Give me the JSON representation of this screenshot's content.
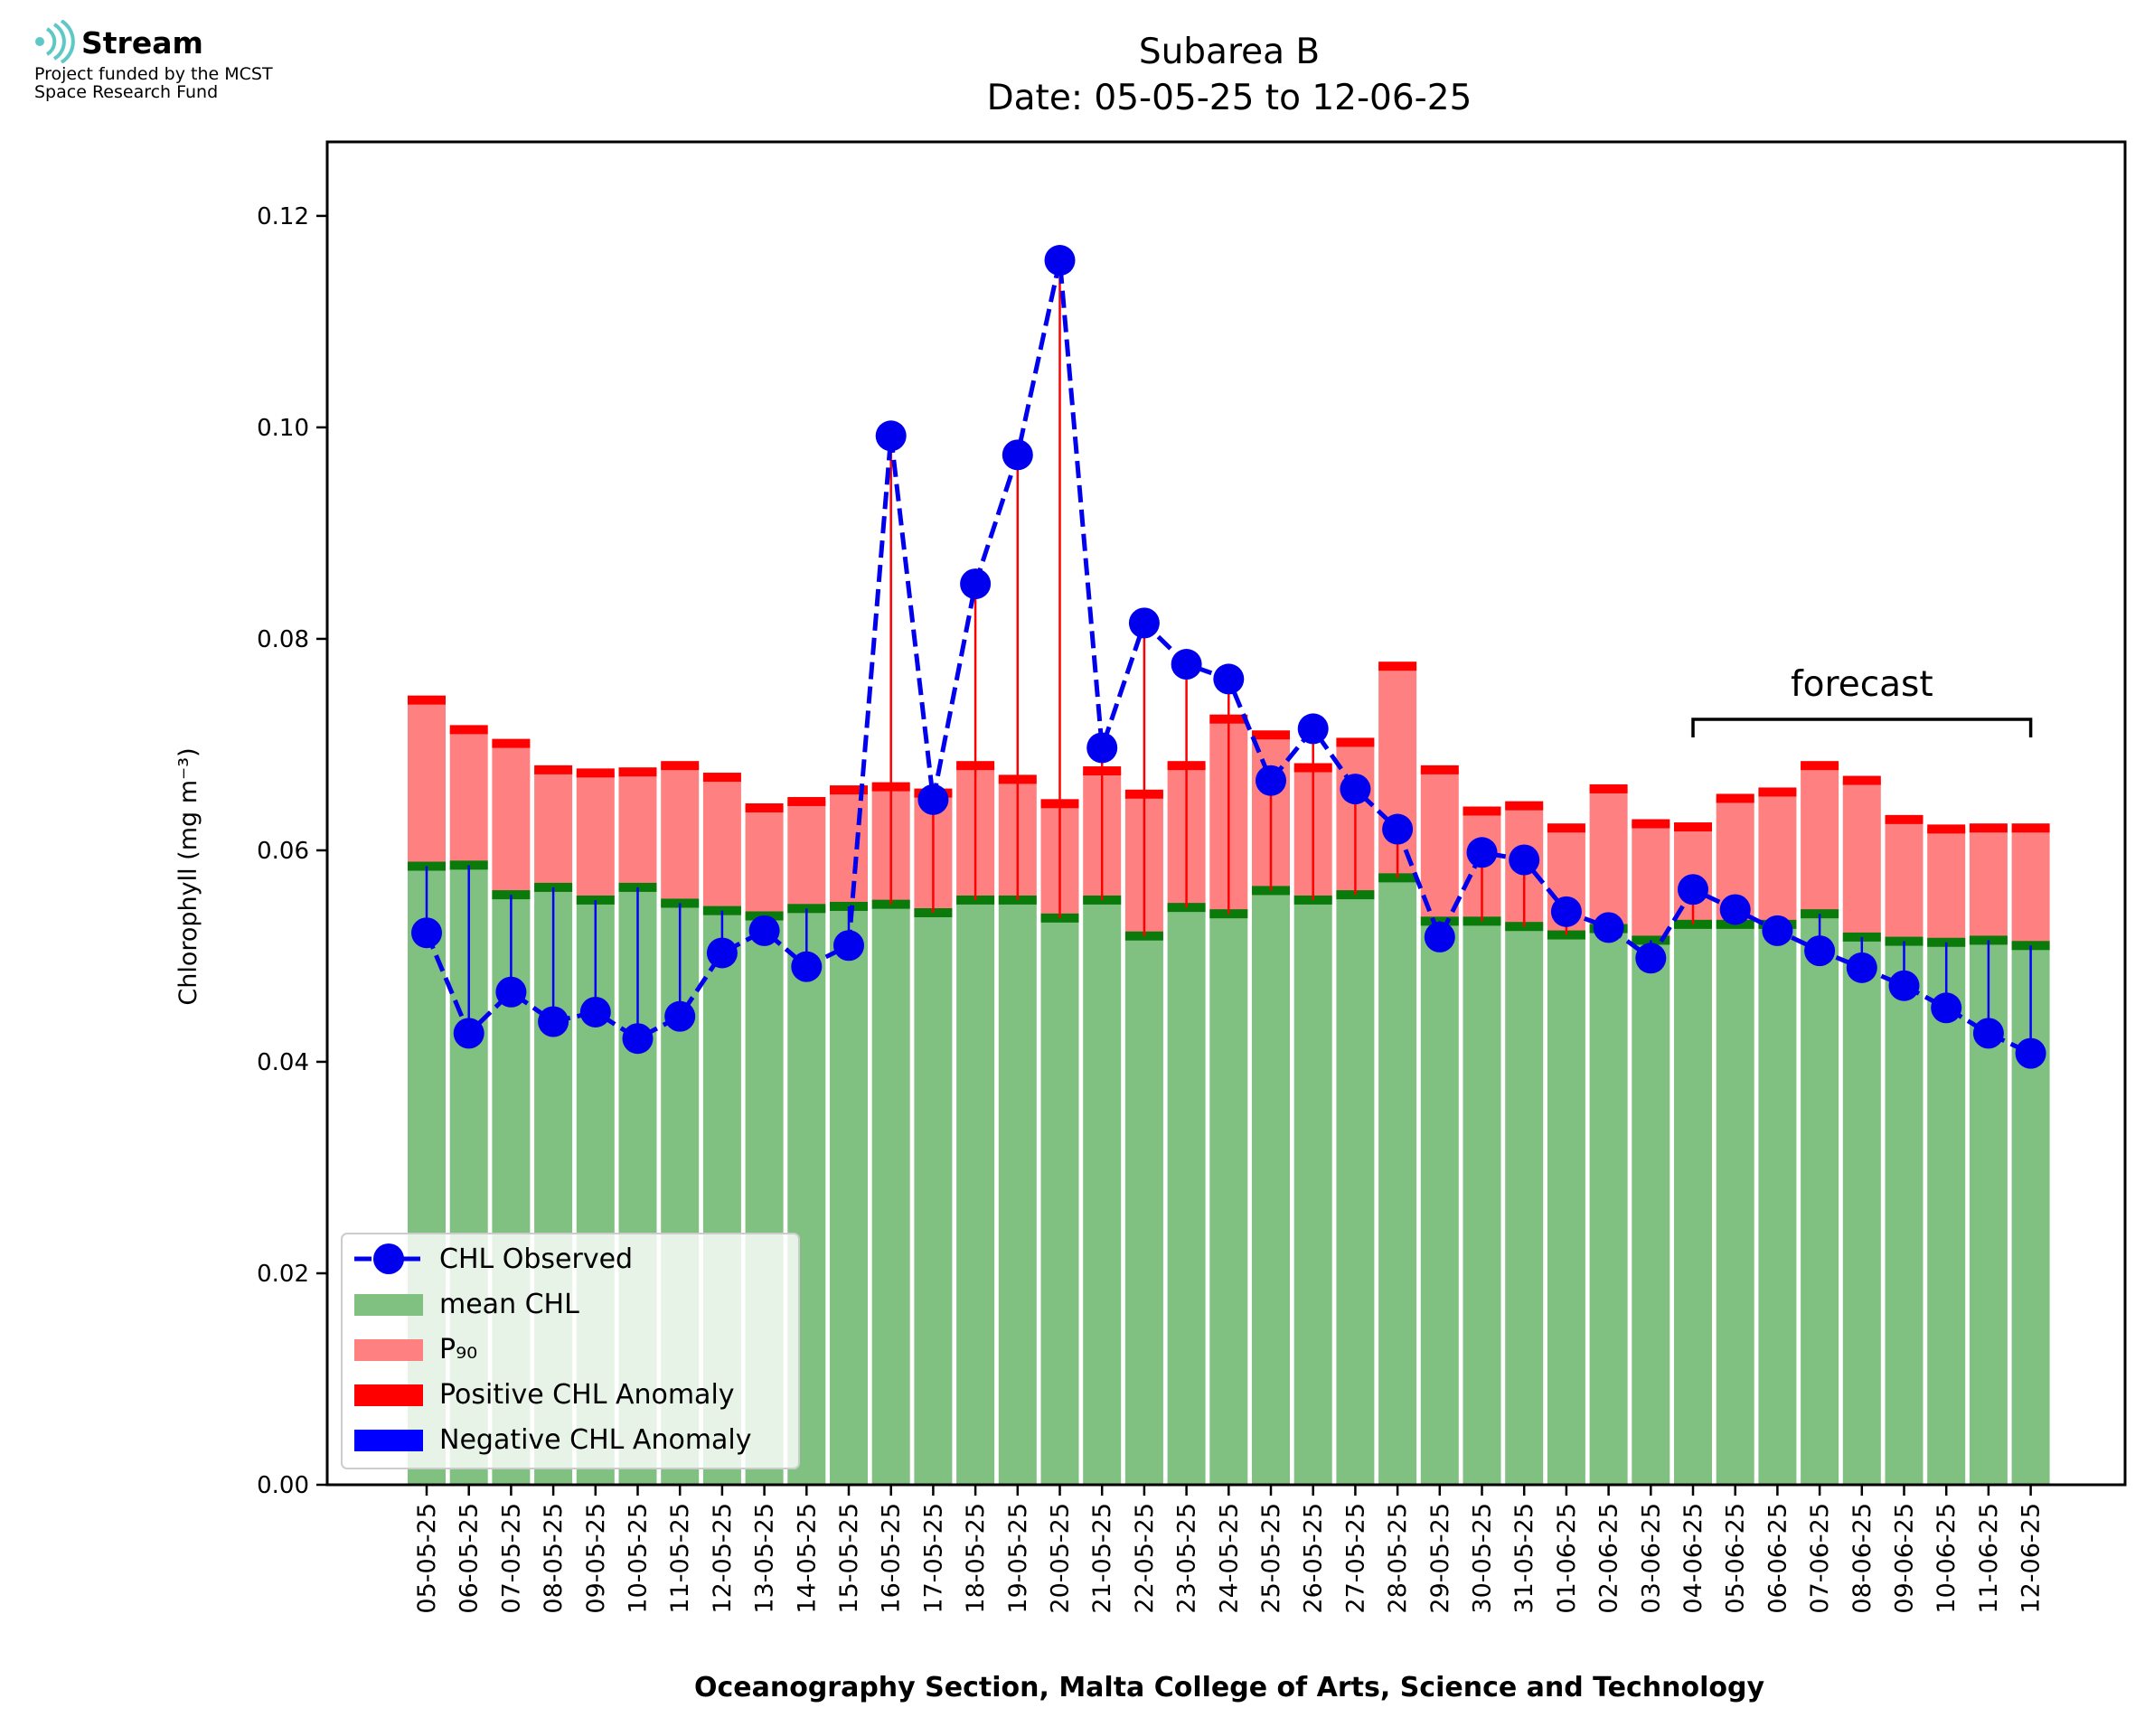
{
  "logo": {
    "name": "Stream",
    "line1": "Project funded by the MCST",
    "line2": "Space Research Fund",
    "icon": "stream-waves-icon",
    "color": "#5ec8c6"
  },
  "chart_data": {
    "type": "bar",
    "title": "Subarea B",
    "subtitle": "Date: 05-05-25 to 12-06-25",
    "xlabel": "Oceanography Section, Malta College of Arts, Science and Technology",
    "ylabel": "Chlorophyll (mg m⁻³)",
    "ylim": [
      0,
      0.127
    ],
    "yticks": [
      0.0,
      0.02,
      0.04,
      0.06,
      0.08,
      0.1,
      0.12
    ],
    "ytick_labels": [
      "0.00",
      "0.02",
      "0.04",
      "0.06",
      "0.08",
      "0.10",
      "0.12"
    ],
    "grid": false,
    "legend_position": "lower-left",
    "categories": [
      "05-05-25",
      "06-05-25",
      "07-05-25",
      "08-05-25",
      "09-05-25",
      "10-05-25",
      "11-05-25",
      "12-05-25",
      "13-05-25",
      "14-05-25",
      "15-05-25",
      "16-05-25",
      "17-05-25",
      "18-05-25",
      "19-05-25",
      "20-05-25",
      "21-05-25",
      "22-05-25",
      "23-05-25",
      "24-05-25",
      "25-05-25",
      "26-05-25",
      "27-05-25",
      "28-05-25",
      "29-05-25",
      "30-05-25",
      "31-05-25",
      "01-06-25",
      "02-06-25",
      "03-06-25",
      "04-06-25",
      "05-06-25",
      "06-06-25",
      "07-06-25",
      "08-06-25",
      "09-06-25",
      "10-06-25",
      "11-06-25",
      "12-06-25"
    ],
    "series": [
      {
        "name": "CHL Observed",
        "color": "#0000ee",
        "style": "dashed-line-with-markers",
        "values": [
          0.0522,
          0.0427,
          0.0466,
          0.0438,
          0.0447,
          0.0422,
          0.0443,
          0.0503,
          0.0524,
          0.049,
          0.051,
          0.0992,
          0.0648,
          0.0852,
          0.0974,
          0.1158,
          0.0697,
          0.0815,
          0.0776,
          0.0762,
          0.0666,
          0.0715,
          0.0658,
          0.062,
          0.0518,
          0.0598,
          0.0591,
          0.0542,
          0.0527,
          0.0498,
          0.0563,
          0.0544,
          0.0524,
          0.0505,
          0.0489,
          0.0472,
          0.0451,
          0.0427,
          0.0408
        ]
      },
      {
        "name": "mean CHL",
        "color": "#80c080",
        "values": [
          0.0585,
          0.0586,
          0.0558,
          0.0565,
          0.0553,
          0.0565,
          0.055,
          0.0543,
          0.0538,
          0.0545,
          0.0547,
          0.0549,
          0.0541,
          0.0553,
          0.0553,
          0.0536,
          0.0553,
          0.0519,
          0.0546,
          0.054,
          0.0562,
          0.0553,
          0.0558,
          0.0574,
          0.0533,
          0.0533,
          0.0528,
          0.052,
          0.0526,
          0.0515,
          0.053,
          0.053,
          0.053,
          0.054,
          0.0518,
          0.0514,
          0.0513,
          0.0515,
          0.051
        ]
      },
      {
        "name": "P₉₀",
        "color": "#ff8080",
        "values": [
          0.0743,
          0.0715,
          0.0702,
          0.0677,
          0.0674,
          0.0675,
          0.0681,
          0.067,
          0.0641,
          0.0647,
          0.0658,
          0.0661,
          0.0655,
          0.0681,
          0.0668,
          0.0645,
          0.0676,
          0.0654,
          0.0681,
          0.0725,
          0.071,
          0.0679,
          0.0703,
          0.0775,
          0.0677,
          0.0638,
          0.0643,
          0.0622,
          0.0659,
          0.0626,
          0.0623,
          0.065,
          0.0656,
          0.0681,
          0.0667,
          0.063,
          0.0621,
          0.0622,
          0.0622
        ]
      }
    ],
    "anomaly_series": [
      {
        "name": "Positive CHL Anomaly",
        "color": "#ff0000"
      },
      {
        "name": "Negative CHL Anomaly",
        "color": "#0000ff"
      }
    ],
    "annotation": {
      "text": "forecast",
      "from": "04-06-25",
      "to": "12-06-25"
    }
  }
}
